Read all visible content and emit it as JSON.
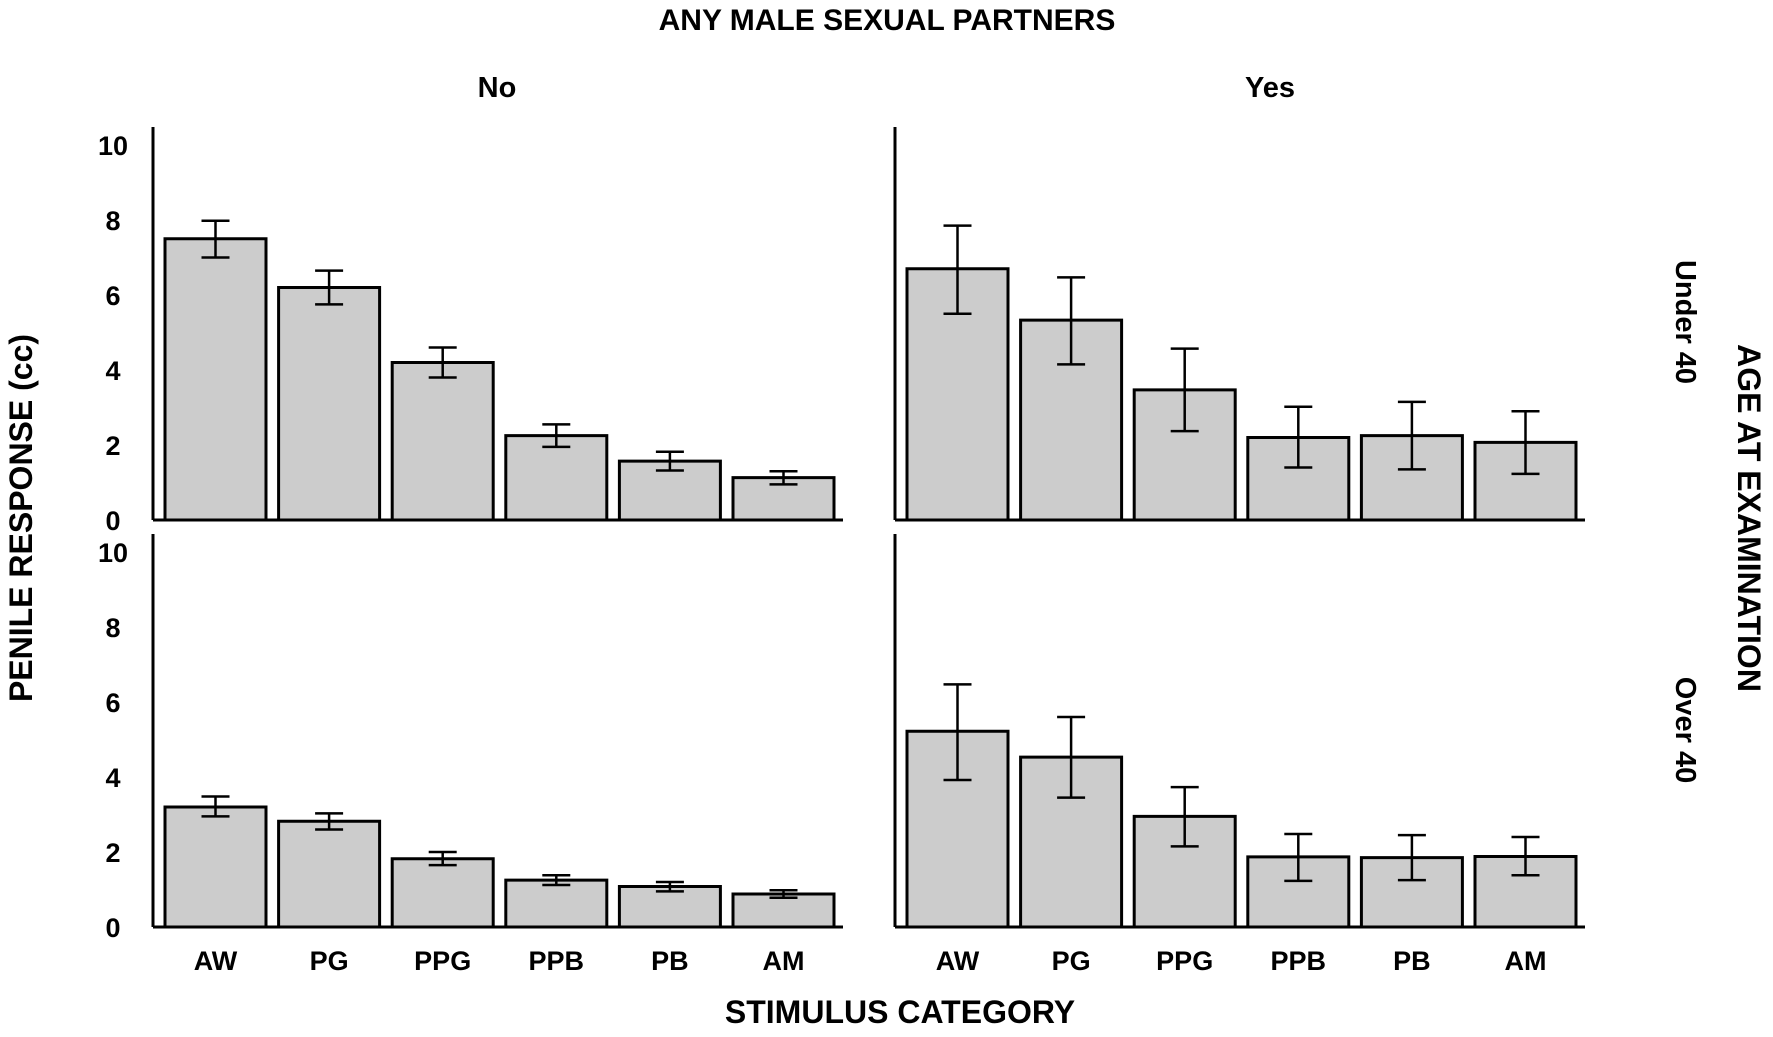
{
  "chart_data": {
    "type": "bar",
    "title": "ANY MALE SEXUAL PARTNERS",
    "xlabel": "STIMULUS CATEGORY",
    "ylabel": "PENILE RESPONSE (cc)",
    "row_group_label": "AGE AT EXAMINATION",
    "column_labels": [
      "No",
      "Yes"
    ],
    "row_labels": [
      "Under 40",
      "Over 40"
    ],
    "categories": [
      "AW",
      "PG",
      "PPG",
      "PPB",
      "PB",
      "AM"
    ],
    "ylim": [
      0,
      10
    ],
    "yticks": [
      "0",
      "2",
      "4",
      "6",
      "8",
      "10"
    ],
    "grid": false,
    "panels": [
      {
        "column": "No",
        "row": "Under 40",
        "values": [
          7.5,
          6.2,
          4.2,
          2.25,
          1.57,
          1.13
        ],
        "error_low": [
          7.0,
          5.75,
          3.8,
          1.95,
          1.32,
          0.95
        ],
        "error_high": [
          7.98,
          6.65,
          4.6,
          2.55,
          1.82,
          1.3
        ]
      },
      {
        "column": "Yes",
        "row": "Under 40",
        "values": [
          6.7,
          5.33,
          3.47,
          2.2,
          2.25,
          2.07
        ],
        "error_low": [
          5.5,
          4.15,
          2.37,
          1.4,
          1.35,
          1.23
        ],
        "error_high": [
          7.85,
          6.47,
          4.57,
          3.02,
          3.15,
          2.9
        ]
      },
      {
        "column": "No",
        "row": "Over 40",
        "values": [
          3.2,
          2.82,
          1.82,
          1.25,
          1.08,
          0.88
        ],
        "error_low": [
          2.95,
          2.6,
          1.65,
          1.12,
          0.95,
          0.78
        ],
        "error_high": [
          3.48,
          3.03,
          2.0,
          1.38,
          1.2,
          0.98
        ]
      },
      {
        "column": "Yes",
        "row": "Over 40",
        "values": [
          5.22,
          4.53,
          2.95,
          1.87,
          1.85,
          1.88
        ],
        "error_low": [
          3.92,
          3.45,
          2.15,
          1.23,
          1.25,
          1.38
        ],
        "error_high": [
          6.47,
          5.6,
          3.73,
          2.48,
          2.45,
          2.4
        ]
      }
    ]
  }
}
